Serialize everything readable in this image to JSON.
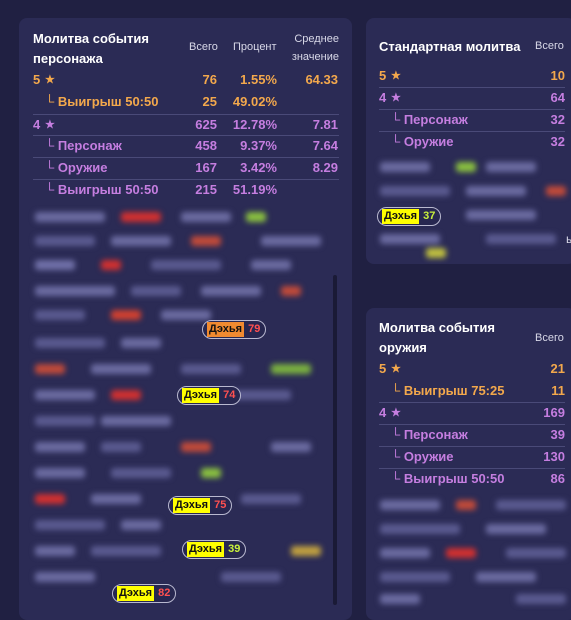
{
  "character_banner": {
    "title_line1": "Молитва события",
    "title_line2": "персонажа",
    "col_total": "Всего",
    "col_percent": "Процент",
    "col_avg_line1": "Среднее",
    "col_avg_line2": "значение",
    "rows": [
      {
        "label": "5",
        "star": "★",
        "total": "76",
        "percent": "1.55%",
        "avg": "64.33"
      },
      {
        "label": "└ Выигрыш 50:50",
        "total": "25",
        "percent": "49.02%",
        "avg": ""
      },
      {
        "label": "4",
        "star": "★",
        "total": "625",
        "percent": "12.78%",
        "avg": "7.81"
      },
      {
        "label": "└ Персонаж",
        "total": "458",
        "percent": "9.37%",
        "avg": "7.64"
      },
      {
        "label": "└ Оружие",
        "total": "167",
        "percent": "3.42%",
        "avg": "8.29"
      },
      {
        "label": "└ Выигрыш 50:50",
        "total": "215",
        "percent": "51.19%",
        "avg": ""
      }
    ],
    "badges": [
      {
        "name": "Дэхья",
        "pity": "79",
        "highlight": "#f08a30",
        "color": "#ff5050"
      },
      {
        "name": "Дэхья",
        "pity": "74",
        "highlight": "#ffff00",
        "color": "#ff5050"
      },
      {
        "name": "Дэхья",
        "pity": "75",
        "highlight": "#ffff00",
        "color": "#ff5050"
      },
      {
        "name": "Дэхья",
        "pity": "39",
        "highlight": "#ffff00",
        "color": "#c8f03c"
      },
      {
        "name": "Дэхья",
        "pity": "82",
        "highlight": "#ffff00",
        "color": "#ff5050"
      }
    ]
  },
  "standard_banner": {
    "title": "Стандартная молитва",
    "col_total": "Всего",
    "rows": [
      {
        "label": "5",
        "star": "★",
        "total": "10"
      },
      {
        "label": "4",
        "star": "★",
        "total": "64"
      },
      {
        "label": "└ Персонаж",
        "total": "32"
      },
      {
        "label": "└ Оружие",
        "total": "32"
      }
    ],
    "badge": {
      "name": "Дэхья",
      "pity": "37",
      "highlight": "#ffff00",
      "color": "#c8f03c"
    },
    "partial_text": "ы"
  },
  "weapon_banner": {
    "title_line1": "Молитва события",
    "title_line2": "оружия",
    "col_total": "Всего",
    "rows": [
      {
        "label": "5",
        "star": "★",
        "total": "21"
      },
      {
        "label": "└ Выигрыш 75:25",
        "total": "11"
      },
      {
        "label": "4",
        "star": "★",
        "total": "169"
      },
      {
        "label": "└ Персонаж",
        "total": "39"
      },
      {
        "label": "└ Оружие",
        "total": "130"
      },
      {
        "label": "└ Выигрыш 50:50",
        "total": "86"
      }
    ]
  },
  "colors": {
    "gold": "#f3a84c",
    "purple": "#c57ee0",
    "background": "#202042",
    "card": "#2b2b55"
  }
}
